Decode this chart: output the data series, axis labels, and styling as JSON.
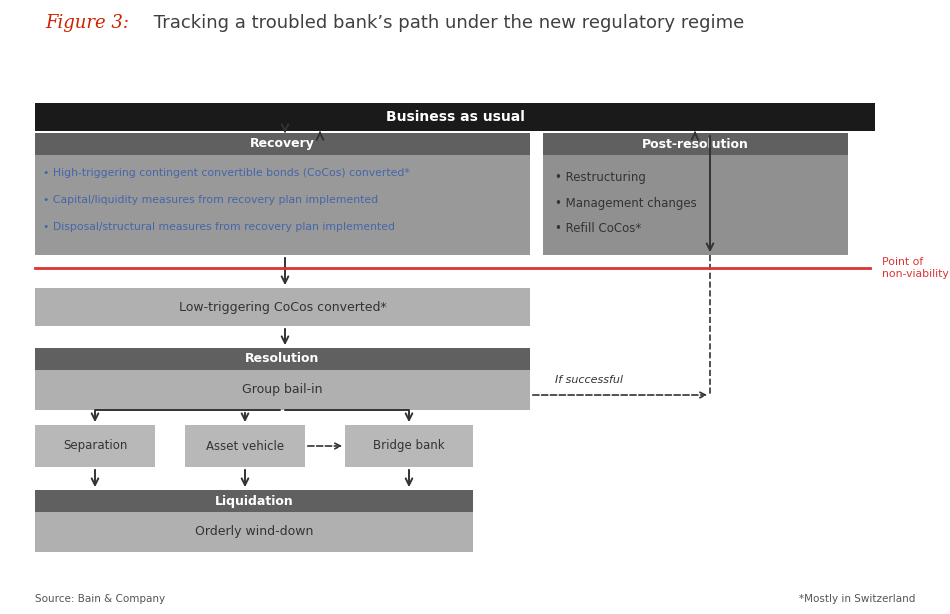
{
  "title_italic": "Figure 3:",
  "title_italic_color": "#cc2200",
  "title_normal": " Tracking a troubled bank’s path under the new regulatory regime",
  "title_color": "#404040",
  "bg_color": "#ffffff",
  "diagram_bg": "#f0f0ec",
  "source_text": "Source: Bain & Company",
  "footnote_text": "*Mostly in Switzerland",
  "point_nonviability": "Point of\nnon-viability",
  "recovery_bullets": [
    "• High-triggering contingent convertible bonds (CoCos) converted*",
    "• Capital/liquidity measures from recovery plan implemented",
    "• Disposal/structural measures from recovery plan implemented"
  ],
  "postres_bullets": [
    "• Restructuring",
    "• Management changes",
    "• Refill CoCos*"
  ],
  "color_bau": "#1a1a1a",
  "color_header": "#606060",
  "color_body": "#999999",
  "color_light_box": "#bbbbbb",
  "color_white": "#ffffff",
  "color_dark_text": "#333333",
  "color_blue_text": "#4466aa",
  "color_red": "#cc3333",
  "color_arrow": "#333333"
}
